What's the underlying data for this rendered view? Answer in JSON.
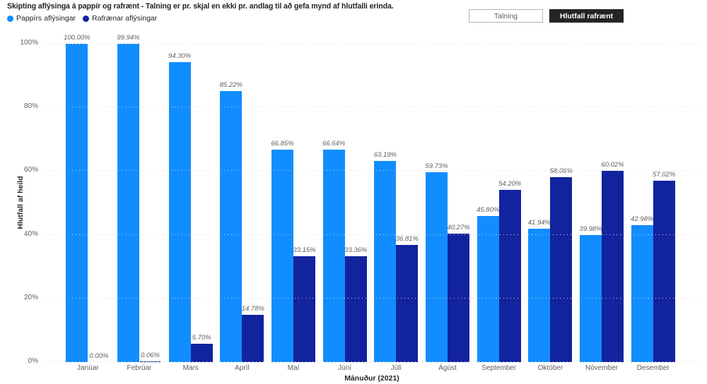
{
  "title": "Skipting aflýsinga á pappír og rafrænt - Talning er pr. skjal en ekki pr. andlag til að gefa mynd af hlutfalli erinda.",
  "legend": [
    {
      "label": "Pappírs aflýsingar",
      "color": "#118DFF"
    },
    {
      "label": "Rafrænar aflýsingar",
      "color": "#12239E"
    }
  ],
  "buttons": [
    {
      "label": "Talning",
      "selected": false
    },
    {
      "label": "Hlutfall rafrænt",
      "selected": true
    }
  ],
  "chart_data": {
    "type": "bar",
    "categories": [
      "Janúar",
      "Febrúar",
      "Mars",
      "Apríl",
      "Maí",
      "Júní",
      "Júlí",
      "Ágúst",
      "September",
      "Október",
      "Nóvember",
      "Desember"
    ],
    "series": [
      {
        "name": "Pappírs aflýsingar",
        "color": "#118DFF",
        "values": [
          100.0,
          99.94,
          94.3,
          85.22,
          66.85,
          66.64,
          63.19,
          59.73,
          45.8,
          41.94,
          39.98,
          42.98
        ]
      },
      {
        "name": "Rafrænar aflýsingar",
        "color": "#12239E",
        "values": [
          0.0,
          0.06,
          5.7,
          14.78,
          33.15,
          33.36,
          36.81,
          40.27,
          54.2,
          58.06,
          60.02,
          57.02
        ]
      }
    ],
    "xlabel": "Mánuður (2021)",
    "ylabel": "Hlutfall af heild",
    "ylim": [
      0,
      100
    ],
    "yticks": [
      "0%",
      "20%",
      "40%",
      "60%",
      "80%",
      "100%"
    ],
    "grid": true,
    "legend_position": "top-left",
    "data_label_format": "0.00%"
  }
}
